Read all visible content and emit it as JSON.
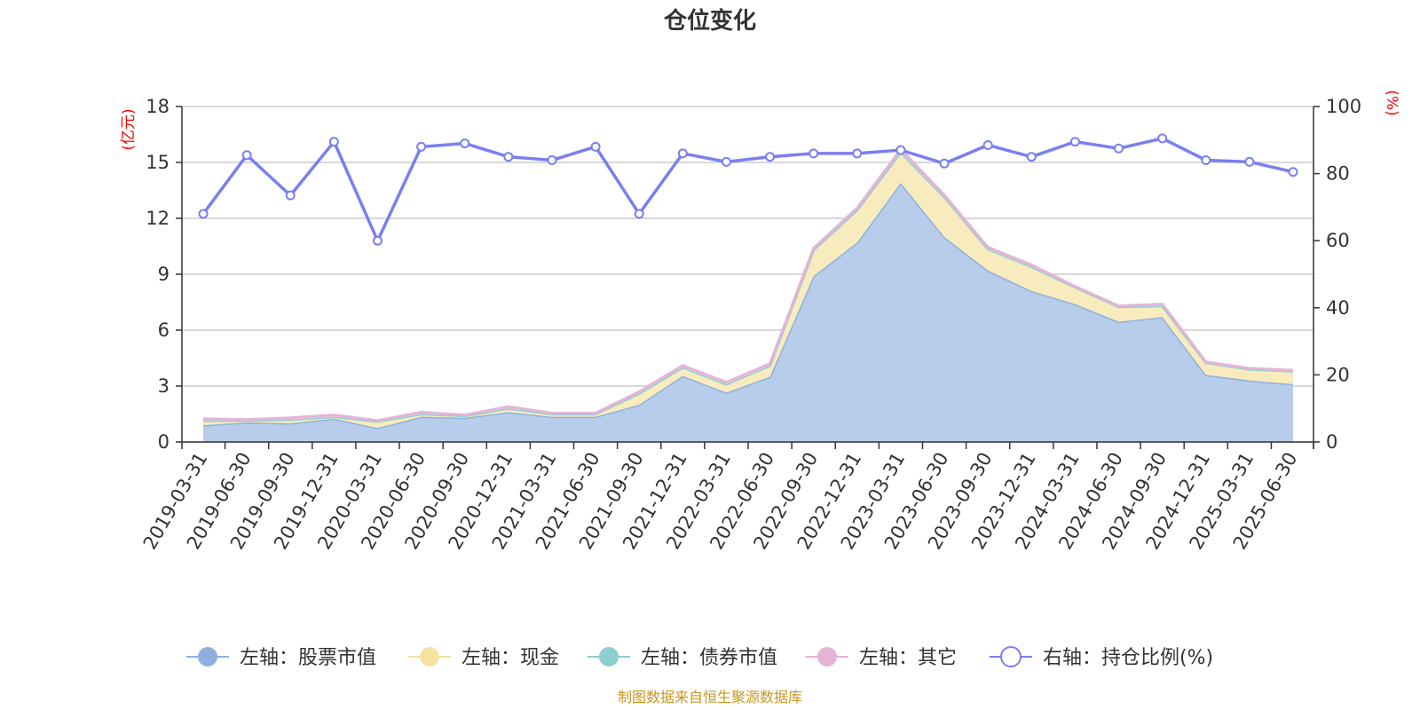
{
  "chart_data": {
    "type": "area",
    "title": "仓位变化",
    "source": "制图数据来自恒生聚源数据库",
    "left_axis": {
      "unit": "(亿元)",
      "min": 0,
      "max": 18,
      "ticks": [
        0,
        3,
        6,
        9,
        12,
        15,
        18
      ]
    },
    "right_axis": {
      "unit": "(%)",
      "min": 0,
      "max": 100,
      "ticks": [
        0,
        20,
        40,
        60,
        80,
        100
      ]
    },
    "grid": true,
    "legend_position": "bottom",
    "x": [
      "2019-03-31",
      "2019-06-30",
      "2019-09-30",
      "2019-12-31",
      "2020-03-31",
      "2020-06-30",
      "2020-09-30",
      "2020-12-31",
      "2021-03-31",
      "2021-06-30",
      "2021-09-30",
      "2021-12-31",
      "2022-03-31",
      "2022-06-30",
      "2022-09-30",
      "2022-12-31",
      "2023-03-31",
      "2023-06-30",
      "2023-09-30",
      "2023-12-31",
      "2024-03-31",
      "2024-06-30",
      "2024-09-30",
      "2024-12-31",
      "2025-03-31",
      "2025-06-30"
    ],
    "series": [
      {
        "name": "左轴：股票市值",
        "axis": "left",
        "type": "stacked-area",
        "color": "#8fb0de",
        "fill": "#b8cdeb",
        "values": [
          0.9,
          1.05,
          1.0,
          1.25,
          0.75,
          1.35,
          1.3,
          1.6,
          1.35,
          1.35,
          2.0,
          3.55,
          2.65,
          3.5,
          8.9,
          10.7,
          13.9,
          11.0,
          9.2,
          8.1,
          7.4,
          6.45,
          6.7,
          3.6,
          3.3,
          3.1
        ]
      },
      {
        "name": "左轴：现金",
        "axis": "left",
        "type": "stacked-area",
        "color": "#f5e3a0",
        "fill": "#f8ebbd",
        "values": [
          0.25,
          0.1,
          0.2,
          0.1,
          0.35,
          0.15,
          0.1,
          0.2,
          0.15,
          0.15,
          0.6,
          0.45,
          0.45,
          0.6,
          1.4,
          1.75,
          1.65,
          2.15,
          1.15,
          1.3,
          0.9,
          0.8,
          0.6,
          0.65,
          0.6,
          0.7
        ]
      },
      {
        "name": "左轴：债券市值",
        "axis": "left",
        "type": "stacked-area",
        "color": "#8dcfd0",
        "fill": "#b2dfe0",
        "values": [
          0,
          0,
          0,
          0,
          0,
          0,
          0,
          0,
          0,
          0,
          0,
          0,
          0,
          0,
          0,
          0,
          0,
          0,
          0,
          0,
          0,
          0,
          0,
          0,
          0,
          0
        ]
      },
      {
        "name": "左轴：其它",
        "axis": "left",
        "type": "stacked-area",
        "color": "#e6b3d7",
        "fill": "#f1d2e7",
        "values": [
          0.1,
          0.05,
          0.1,
          0.1,
          0.05,
          0.1,
          0.05,
          0.1,
          0.05,
          0.05,
          0.1,
          0.1,
          0.1,
          0.1,
          0.1,
          0.1,
          0.15,
          0.1,
          0.1,
          0.1,
          0.05,
          0.05,
          0.1,
          0.05,
          0.05,
          0.05
        ]
      },
      {
        "name": "右轴：持仓比例(%)",
        "axis": "right",
        "type": "line",
        "color": "#7a7ff0",
        "values": [
          68,
          85.5,
          73.5,
          89.5,
          60,
          88,
          89,
          85,
          84,
          88,
          68,
          86,
          83.5,
          85,
          86,
          86,
          87,
          83,
          88.5,
          85,
          89.5,
          87.5,
          90.5,
          84,
          83.5,
          80.5
        ]
      }
    ]
  }
}
